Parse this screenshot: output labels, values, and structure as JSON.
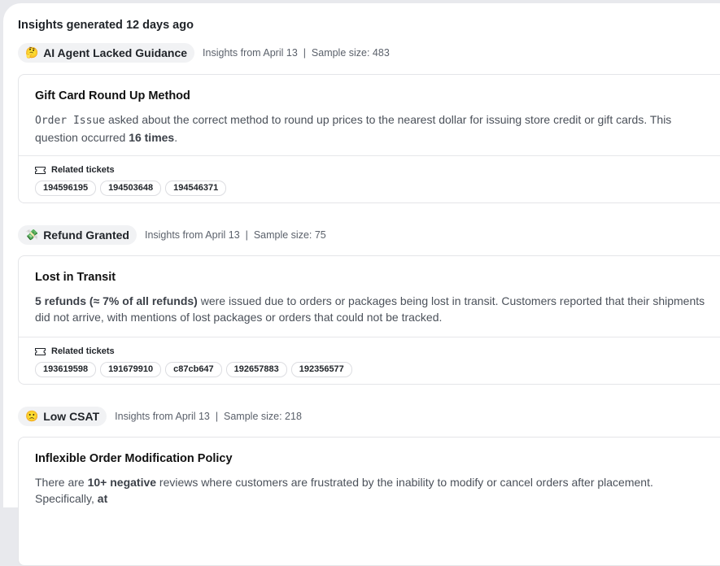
{
  "heading": "Insights generated 12 days ago",
  "related_label": "Related tickets",
  "sections": [
    {
      "emoji": "🤔",
      "category": "AI Agent Lacked Guidance",
      "meta": "Insights from April 13  |  Sample size: 483",
      "title": "Gift Card Round Up Method",
      "body_mono": "Order Issue",
      "body_text": " asked about the correct method to round up prices to the nearest dollar for issuing store credit or gift cards. This question occurred ",
      "body_bold": "16 times",
      "body_end": ".",
      "tickets": [
        "194596195",
        "194503648",
        "194546371"
      ]
    },
    {
      "emoji": "💸",
      "category": "Refund Granted",
      "meta": "Insights from April 13  |  Sample size: 75",
      "title": "Lost in Transit",
      "body_bold": "5 refunds (≈ 7% of all refunds)",
      "body_text": " were issued due to orders or packages being lost in transit. Customers reported that their shipments did not arrive, with mentions of lost packages or orders that could not be tracked.",
      "tickets": [
        "193619598",
        "191679910",
        "c87cb647",
        "192657883",
        "192356577"
      ]
    },
    {
      "emoji": "🙁",
      "category": "Low CSAT",
      "meta": "Insights from April 13  |  Sample size: 218",
      "title": "Inflexible Order Modification Policy",
      "body_pre": "There are ",
      "body_bold": "10+ negative",
      "body_text": " reviews where customers are frustrated by the inability to modify or cancel orders after placement. Specifically, ",
      "body_bold2": "at"
    }
  ]
}
